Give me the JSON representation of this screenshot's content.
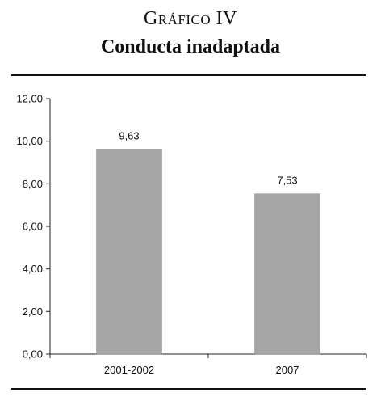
{
  "header": {
    "number": "Gráfico IV",
    "title": "Conducta inadaptada"
  },
  "chart_data": {
    "type": "bar",
    "categories": [
      "2001-2002",
      "2007"
    ],
    "values": [
      9.63,
      7.53
    ],
    "data_labels": [
      "9,63",
      "7,53"
    ],
    "ylim": [
      0,
      12
    ],
    "yticks": [
      "0,00",
      "2,00",
      "4,00",
      "6,00",
      "8,00",
      "10,00",
      "12,00"
    ],
    "grid": false,
    "legend": false,
    "bar_color": "#a6a6a6"
  }
}
